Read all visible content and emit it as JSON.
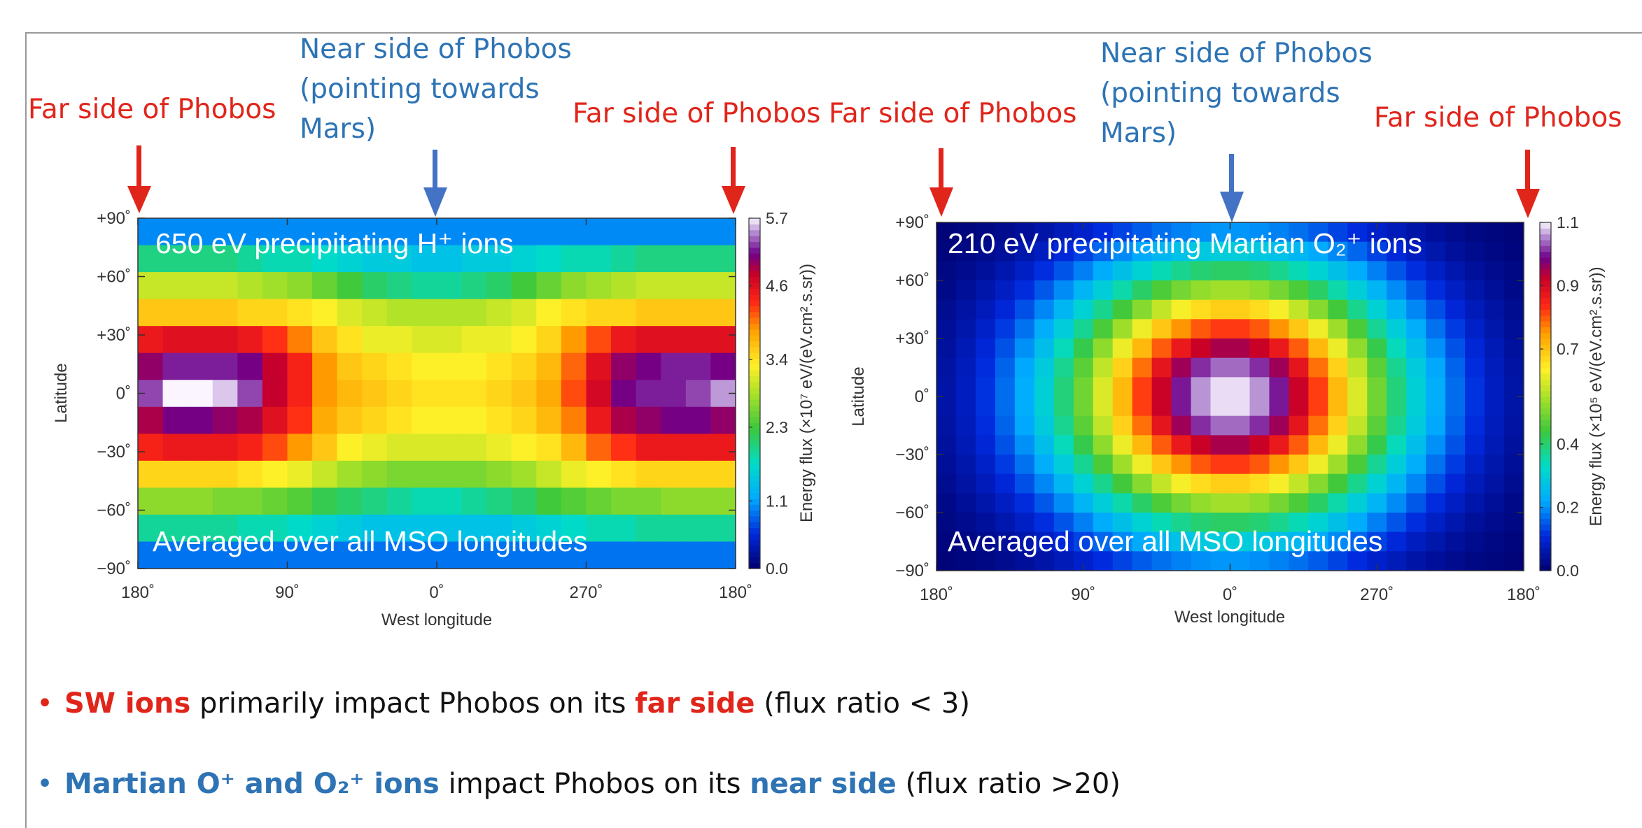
{
  "labels": {
    "far_side": "Far side of Phobos",
    "near_side_line1": "Near side of Phobos",
    "near_side_line2": "(pointing towards",
    "near_side_line3": "Mars)"
  },
  "colors": {
    "far_red": "#e0251b",
    "near_blue": "#4472c4",
    "text_blue": "#2e74b5"
  },
  "chart_data": [
    {
      "type": "heatmap",
      "title": "650 eV precipitating H⁺ ions",
      "subtitle": "Averaged over all MSO longitudes",
      "xlabel": "West longitude",
      "ylabel": "Latitude",
      "xticks": [
        "180˚",
        "90˚",
        "0˚",
        "270˚",
        "180˚"
      ],
      "yticks": [
        "+90˚",
        "+60˚",
        "+30˚",
        "0˚",
        "−30˚",
        "−60˚",
        "−90˚"
      ],
      "colorbar_label": "Energy flux (×10⁷ eV/(eV.cm².s.sr))",
      "colorbar_ticks": [
        "5.7",
        "4.6",
        "3.4",
        "2.3",
        "1.1",
        "0.0"
      ],
      "zlim": [
        0,
        5.7
      ],
      "rows": [
        [
          1.0,
          1.0,
          1.0,
          1.0,
          1.0,
          1.0,
          1.0,
          1.0,
          1.0,
          1.0,
          1.0,
          1.0,
          1.0,
          1.0,
          1.0,
          1.0,
          1.0,
          1.0,
          1.0,
          1.0,
          1.0,
          1.0,
          1.0,
          1.0
        ],
        [
          2.0,
          2.0,
          2.0,
          2.0,
          1.9,
          1.8,
          1.8,
          1.7,
          1.6,
          1.5,
          1.5,
          1.4,
          1.4,
          1.5,
          1.5,
          1.6,
          1.7,
          1.8,
          1.8,
          1.9,
          2.0,
          2.0,
          2.0,
          2.0
        ],
        [
          3.0,
          3.0,
          3.0,
          3.0,
          2.9,
          2.8,
          2.7,
          2.5,
          2.3,
          2.1,
          2.0,
          1.9,
          1.9,
          2.0,
          2.1,
          2.3,
          2.5,
          2.7,
          2.8,
          2.9,
          3.0,
          3.0,
          3.0,
          3.0
        ],
        [
          3.6,
          3.6,
          3.6,
          3.6,
          3.5,
          3.5,
          3.4,
          3.3,
          3.1,
          3.0,
          2.9,
          2.9,
          2.9,
          2.9,
          3.0,
          3.1,
          3.3,
          3.4,
          3.5,
          3.5,
          3.6,
          3.6,
          3.6,
          3.6
        ],
        [
          4.5,
          4.6,
          4.6,
          4.6,
          4.5,
          4.3,
          4.0,
          3.6,
          3.4,
          3.2,
          3.2,
          3.1,
          3.1,
          3.2,
          3.2,
          3.3,
          3.5,
          3.9,
          4.2,
          4.5,
          4.6,
          4.6,
          4.6,
          4.6
        ],
        [
          5.0,
          5.2,
          5.2,
          5.2,
          5.1,
          4.8,
          4.4,
          3.9,
          3.6,
          3.5,
          3.4,
          3.3,
          3.3,
          3.3,
          3.4,
          3.5,
          3.7,
          4.1,
          4.6,
          5.0,
          5.1,
          5.2,
          5.2,
          5.1
        ],
        [
          5.3,
          5.7,
          5.7,
          5.6,
          5.3,
          4.8,
          4.4,
          3.9,
          3.7,
          3.6,
          3.5,
          3.4,
          3.4,
          3.4,
          3.5,
          3.6,
          3.8,
          4.2,
          4.7,
          5.1,
          5.2,
          5.2,
          5.3,
          5.5
        ],
        [
          4.9,
          5.1,
          5.1,
          5.0,
          4.9,
          4.6,
          4.3,
          3.8,
          3.6,
          3.5,
          3.4,
          3.3,
          3.3,
          3.3,
          3.4,
          3.5,
          3.7,
          4.0,
          4.5,
          4.9,
          5.0,
          5.1,
          5.1,
          5.0
        ],
        [
          4.4,
          4.5,
          4.5,
          4.5,
          4.4,
          4.2,
          3.9,
          3.6,
          3.3,
          3.2,
          3.1,
          3.1,
          3.1,
          3.1,
          3.2,
          3.3,
          3.4,
          3.7,
          4.1,
          4.3,
          4.5,
          4.5,
          4.5,
          4.5
        ],
        [
          3.5,
          3.5,
          3.5,
          3.5,
          3.4,
          3.3,
          3.2,
          3.0,
          2.8,
          2.7,
          2.6,
          2.6,
          2.6,
          2.6,
          2.7,
          2.8,
          3.0,
          3.2,
          3.3,
          3.4,
          3.5,
          3.5,
          3.5,
          3.5
        ],
        [
          2.7,
          2.7,
          2.7,
          2.6,
          2.6,
          2.5,
          2.4,
          2.2,
          2.1,
          2.0,
          1.9,
          1.8,
          1.8,
          1.9,
          2.0,
          2.1,
          2.3,
          2.4,
          2.5,
          2.6,
          2.6,
          2.7,
          2.7,
          2.7
        ],
        [
          1.9,
          1.9,
          1.9,
          1.9,
          1.8,
          1.8,
          1.7,
          1.6,
          1.5,
          1.4,
          1.4,
          1.4,
          1.4,
          1.4,
          1.4,
          1.5,
          1.6,
          1.7,
          1.8,
          1.8,
          1.9,
          1.9,
          1.9,
          1.9
        ],
        [
          0.9,
          0.9,
          0.9,
          0.9,
          0.9,
          0.9,
          0.9,
          0.9,
          0.9,
          0.9,
          0.9,
          0.9,
          0.9,
          0.9,
          0.9,
          0.9,
          0.9,
          0.9,
          0.9,
          0.9,
          0.9,
          0.9,
          0.9,
          0.9
        ]
      ]
    },
    {
      "type": "heatmap",
      "title": "210 eV precipitating Martian O₂⁺ ions",
      "subtitle": "Averaged over all MSO longitudes",
      "xlabel": "West longitude",
      "ylabel": "Latitude",
      "xticks": [
        "180˚",
        "90˚",
        "0˚",
        "270˚",
        "180˚"
      ],
      "yticks": [
        "+90˚",
        "+60˚",
        "+30˚",
        "0˚",
        "−30˚",
        "−60˚",
        "−90˚"
      ],
      "colorbar_label": "Energy flux (×10⁵ eV/(eV.cm².s.sr))",
      "colorbar_ticks": [
        "1.1",
        "0.9",
        "0.7",
        "0.4",
        "0.2",
        "0.0"
      ],
      "zlim": [
        0,
        1.1
      ],
      "peak": {
        "lon": 0,
        "lat": 0,
        "value": 1.1
      }
    }
  ],
  "bullets": [
    {
      "parts": [
        {
          "text": "SW ions",
          "style": "hl-red"
        },
        {
          "text": " primarily impact Phobos on its ",
          "style": ""
        },
        {
          "text": "far side",
          "style": "hl-red"
        },
        {
          "text": " (flux ratio < 3)",
          "style": ""
        }
      ]
    },
    {
      "parts": [
        {
          "text": "Martian O⁺ and O₂⁺ ions",
          "style": "hl-blue"
        },
        {
          "text": " impact Phobos on its ",
          "style": ""
        },
        {
          "text": "near side",
          "style": "hl-blue"
        },
        {
          "text": " (flux ratio >20)",
          "style": ""
        }
      ]
    }
  ],
  "bullet_symbol": "•"
}
